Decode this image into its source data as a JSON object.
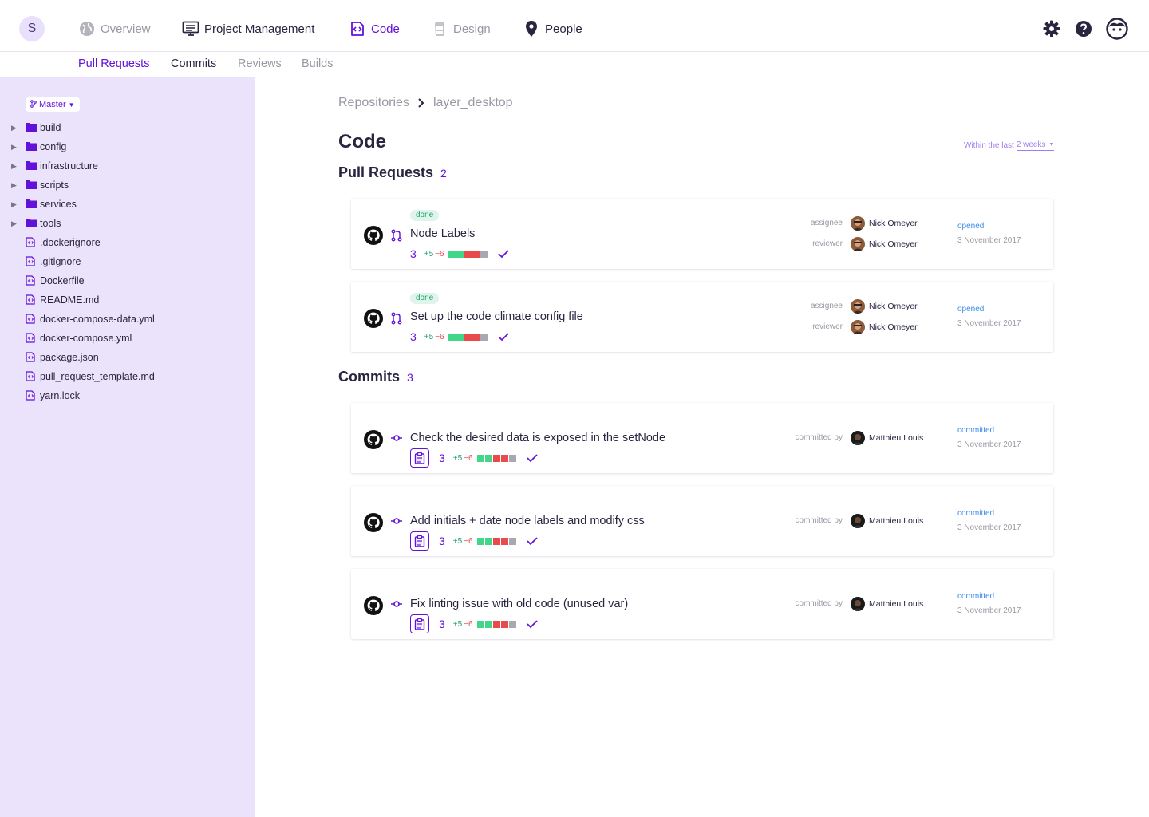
{
  "user_initial": "S",
  "nav": {
    "overview": "Overview",
    "project_management": "Project Management",
    "code": "Code",
    "design": "Design",
    "people": "People"
  },
  "subnav": {
    "pull_requests": "Pull Requests",
    "commits": "Commits",
    "reviews": "Reviews",
    "builds": "Builds"
  },
  "sidebar": {
    "branch": "Master",
    "folders": [
      "build",
      "config",
      "infrastructure",
      "scripts",
      "services",
      "tools"
    ],
    "files": [
      ".dockerignore",
      ".gitignore",
      "Dockerfile",
      "README.md",
      "docker-compose-data.yml",
      "docker-compose.yml",
      "package.json",
      "pull_request_template.md",
      "yarn.lock"
    ]
  },
  "breadcrumb": {
    "root": "Repositories",
    "current": "layer_desktop"
  },
  "page_title": "Code",
  "time_filter": {
    "prefix": "Within the last",
    "value": "2 weeks"
  },
  "pull_requests": {
    "heading": "Pull Requests",
    "count": "2",
    "items": [
      {
        "badge": "done",
        "title": "Node Labels",
        "num": "3",
        "added": "+5",
        "removed": "−6",
        "assignee_label": "assignee",
        "assignee": "Nick Omeyer",
        "reviewer_label": "reviewer",
        "reviewer": "Nick Omeyer",
        "status": "opened",
        "date": "3 November 2017"
      },
      {
        "badge": "done",
        "title": "Set up the code climate config file",
        "num": "3",
        "added": "+5",
        "removed": "−6",
        "assignee_label": "assignee",
        "assignee": "Nick Omeyer",
        "reviewer_label": "reviewer",
        "reviewer": "Nick Omeyer",
        "status": "opened",
        "date": "3 November 2017"
      }
    ]
  },
  "commits": {
    "heading": "Commits",
    "count": "3",
    "items": [
      {
        "title": "Check the desired data is exposed in the setNode",
        "num": "3",
        "added": "+5",
        "removed": "−6",
        "by_label": "committed by",
        "author": "Matthieu Louis",
        "status": "committed",
        "date": "3 November 2017"
      },
      {
        "title": "Add initials + date node labels and modify css",
        "num": "3",
        "added": "+5",
        "removed": "−6",
        "by_label": "committed by",
        "author": "Matthieu Louis",
        "status": "committed",
        "date": "3 November 2017"
      },
      {
        "title": "Fix linting issue with old code (unused var)",
        "num": "3",
        "added": "+5",
        "removed": "−6",
        "by_label": "committed by",
        "author": "Matthieu Louis",
        "status": "committed",
        "date": "3 November 2017"
      }
    ]
  },
  "colors": {
    "accent": "#6312d9",
    "sidebar_bg": "#ebe2fc",
    "done_badge": "#23a16a",
    "status_link": "#3b8bea",
    "added_green": "#43d68b",
    "removed_red": "#e84b4b"
  },
  "icons": {
    "nav": [
      "globe-icon",
      "monitor-icon",
      "code-icon",
      "mug-icon",
      "map-pin-icon"
    ],
    "top_right": [
      "gear-icon",
      "help-icon",
      "user-face-icon"
    ],
    "card": [
      "github-icon",
      "pull-request-icon",
      "commit-icon",
      "clipboard-icon",
      "check-icon"
    ],
    "tree": [
      "folder-icon",
      "file-code-icon",
      "expand-arrow-icon"
    ]
  }
}
